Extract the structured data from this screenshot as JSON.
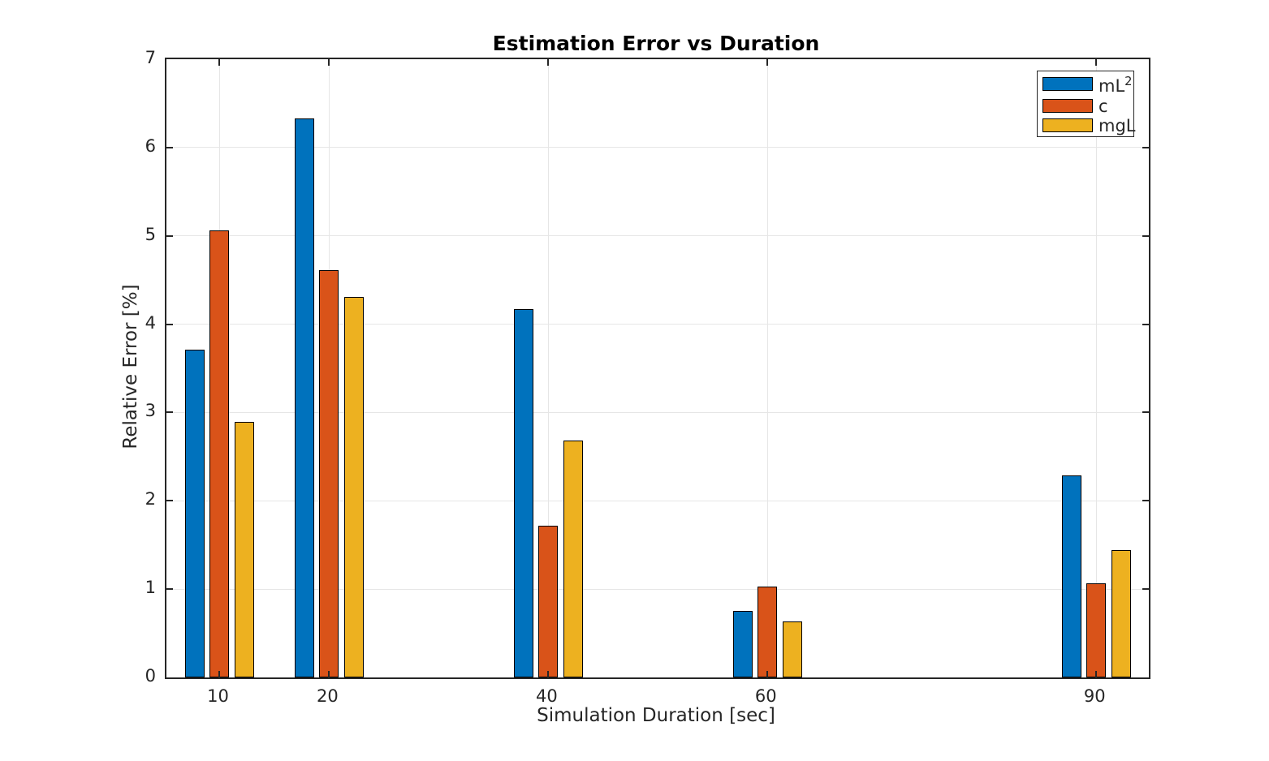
{
  "chart_data": {
    "type": "bar",
    "title": "Estimation Error vs Duration",
    "xlabel": "Simulation Duration [sec]",
    "ylabel": "Relative Error [%]",
    "categories": [
      10,
      20,
      40,
      60,
      90
    ],
    "series": [
      {
        "name": "mL^2",
        "label_base": "mL",
        "label_sup": "2",
        "color": "#0072BD",
        "values": [
          3.71,
          6.33,
          4.17,
          0.75,
          2.29
        ]
      },
      {
        "name": "c",
        "label_base": "c",
        "label_sup": "",
        "color": "#D95319",
        "values": [
          5.06,
          4.61,
          1.72,
          1.03,
          1.07
        ]
      },
      {
        "name": "mgL",
        "label_base": "mgL",
        "label_sup": "",
        "color": "#EDB120",
        "values": [
          2.89,
          4.31,
          2.68,
          0.63,
          1.44
        ]
      }
    ],
    "ylim": [
      0,
      7
    ],
    "yticks": [
      0,
      1,
      2,
      3,
      4,
      5,
      6,
      7
    ],
    "xticks": [
      10,
      20,
      40,
      60,
      90
    ],
    "xlim": [
      5.15,
      94.8
    ],
    "grid": true,
    "legend_position": "top-right",
    "bar_width_units": 1.78,
    "bar_offset_units": 2.245,
    "colors": {
      "axis": "#262626",
      "grid": "#e6e6e6",
      "bar_edge": "#000000",
      "background": "#ffffff"
    }
  }
}
